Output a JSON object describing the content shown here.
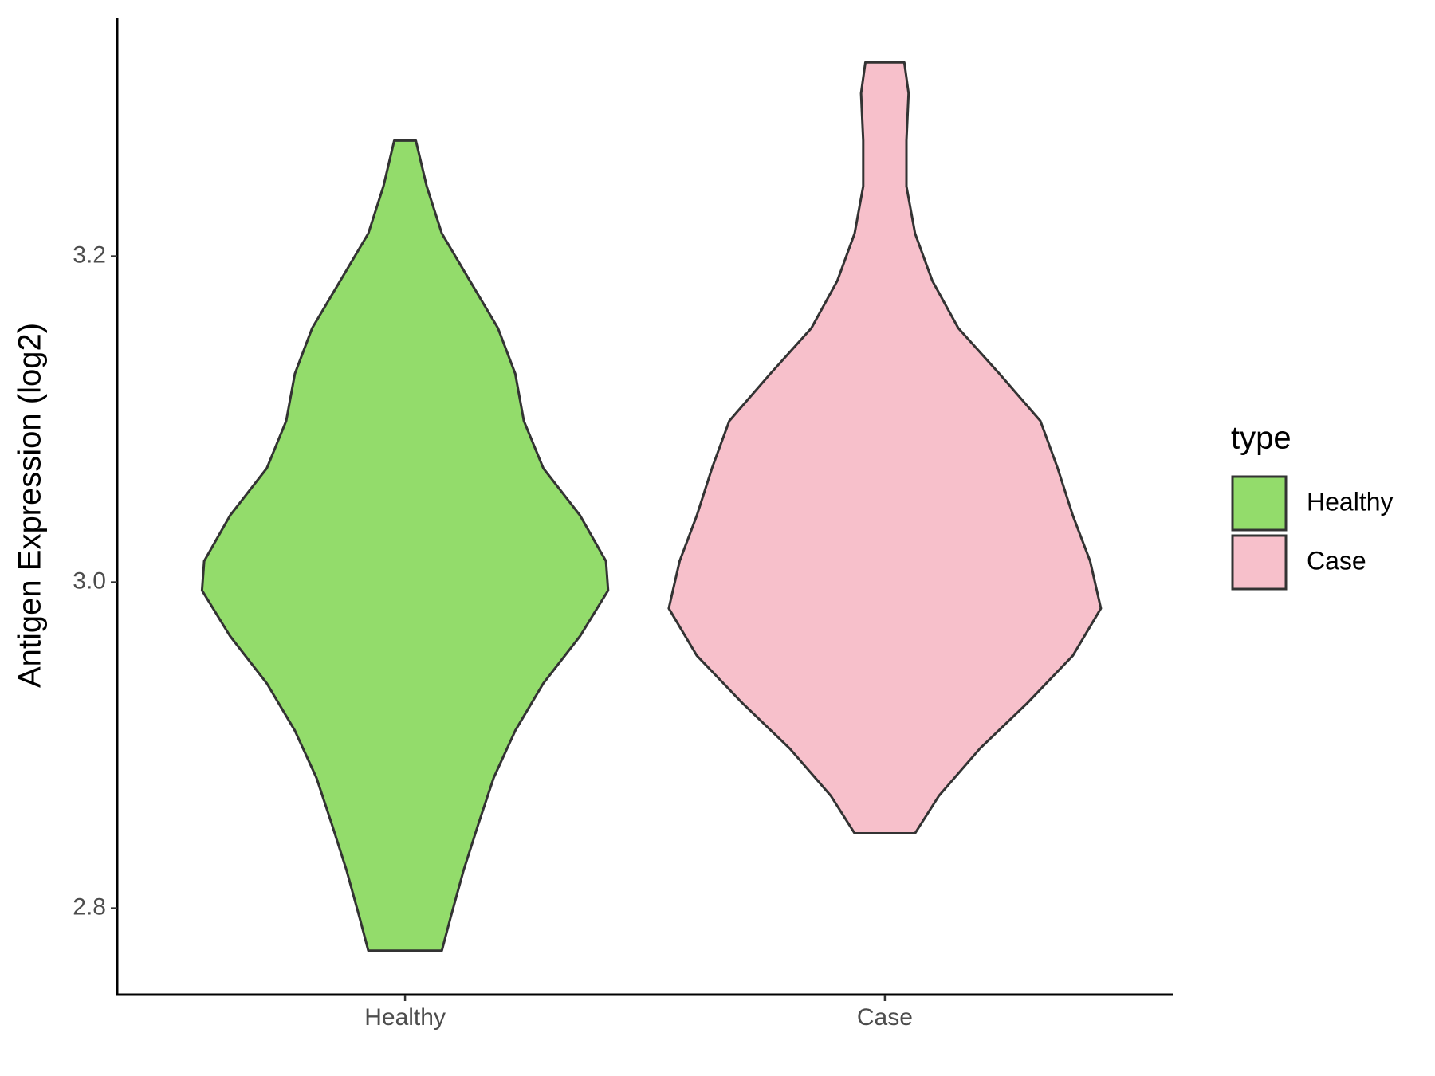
{
  "chart_data": {
    "type": "violin",
    "y_label": "Antigen Expression (log2)",
    "categories": [
      "Healthy",
      "Case"
    ],
    "legend_title": "type",
    "ylim": [
      2.747,
      3.346
    ],
    "yticks": [
      2.8,
      {
        "value": 3,
        "label": "3.0"
      },
      3.2
    ],
    "series": [
      {
        "name": "Healthy",
        "color": "#93dc6b",
        "y": [
          3.271,
          3.243,
          3.214,
          3.185,
          3.156,
          3.128,
          3.099,
          3.07,
          3.041,
          3.013,
          2.995,
          2.967,
          2.938,
          2.909,
          2.88,
          2.852,
          2.823,
          2.794,
          2.774
        ],
        "density": [
          0.05,
          0.1,
          0.17,
          0.3,
          0.43,
          0.51,
          0.55,
          0.64,
          0.81,
          0.93,
          0.94,
          0.81,
          0.64,
          0.51,
          0.41,
          0.34,
          0.27,
          0.21,
          0.17
        ]
      },
      {
        "name": "Case",
        "color": "#f7c0cb",
        "y": [
          3.319,
          3.3,
          3.271,
          3.243,
          3.214,
          3.185,
          3.156,
          3.128,
          3.099,
          3.07,
          3.041,
          3.013,
          2.984,
          2.955,
          2.926,
          2.898,
          2.869,
          2.846
        ],
        "density": [
          0.09,
          0.11,
          0.1,
          0.1,
          0.14,
          0.22,
          0.34,
          0.53,
          0.72,
          0.8,
          0.87,
          0.95,
          1.0,
          0.87,
          0.66,
          0.44,
          0.25,
          0.14
        ]
      }
    ]
  }
}
